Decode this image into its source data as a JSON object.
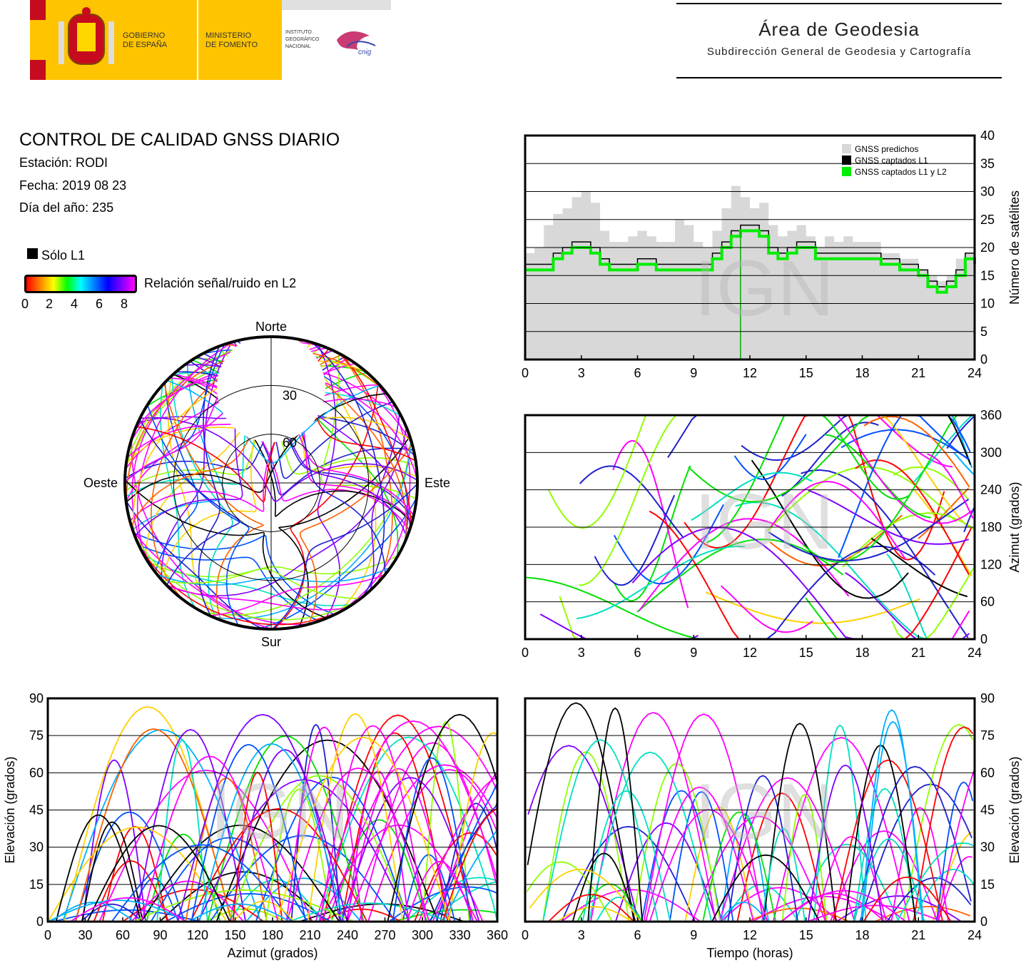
{
  "header": {
    "gov_line1": "GOBIERNO",
    "gov_line2": "DE ESPAÑA",
    "ministry_line1": "MINISTERIO",
    "ministry_line2": "DE FOMENTO",
    "ign_line1": "INSTITUTO",
    "ign_line2": "GEOGRÁFICO",
    "ign_line3": "NACIONAL",
    "cnig_logo": "cnig",
    "area_title": "Área de Geodesia",
    "area_subtitle": "Subdirección General de Geodesia y Cartografía"
  },
  "report": {
    "title": "CONTROL DE CALIDAD GNSS DIARIO",
    "station": "Estación: RODI",
    "date": "Fecha: 2019 08 23",
    "doy": "Día del año: 235"
  },
  "legend": {
    "l1_only": "Sólo L1",
    "snr_label": "Relación señal/ruido en L2",
    "snr_ticks": [
      "0",
      "2",
      "4",
      "6",
      "8"
    ]
  },
  "watermark": "IGN",
  "chart_data": [
    {
      "id": "satellites",
      "type": "area",
      "ylabel": "Número de satélites",
      "xlim": [
        0,
        24
      ],
      "ylim": [
        0,
        40
      ],
      "xticks": [
        "0",
        "3",
        "6",
        "9",
        "12",
        "15",
        "18",
        "21",
        "24"
      ],
      "yticks": [
        "0",
        "5",
        "10",
        "15",
        "20",
        "25",
        "30",
        "35",
        "40"
      ],
      "grid": true,
      "legend_position": "top-right",
      "series": [
        {
          "name": "GNSS predichos",
          "color": "#d8d8d8",
          "x": [
            0,
            0.5,
            1,
            1.5,
            2,
            2.5,
            3,
            3.5,
            4,
            4.5,
            5,
            5.5,
            6,
            6.5,
            7,
            7.5,
            8,
            8.5,
            9,
            9.5,
            10,
            10.5,
            11,
            11.5,
            12,
            12.5,
            13,
            13.5,
            14,
            14.5,
            15,
            15.5,
            16,
            16.5,
            17,
            17.5,
            18,
            18.5,
            19,
            19.5,
            20,
            20.5,
            21,
            21.5,
            22,
            22.5,
            23,
            23.5,
            24
          ],
          "values": [
            19,
            20,
            24,
            26,
            27,
            29,
            30,
            28,
            23,
            21,
            21,
            22,
            23,
            22,
            21,
            21,
            25,
            24,
            21,
            20,
            23,
            27,
            31,
            29,
            27,
            28,
            24,
            22,
            23,
            24,
            22,
            20,
            22,
            21,
            22,
            21,
            21,
            21,
            19,
            19,
            18,
            18,
            16,
            15,
            14,
            15,
            18,
            19,
            18
          ]
        },
        {
          "name": "GNSS captados L1",
          "color": "#000000",
          "x": [
            0,
            0.5,
            1,
            1.5,
            2,
            2.5,
            3,
            3.5,
            4,
            4.5,
            5,
            5.5,
            6,
            6.5,
            7,
            7.5,
            8,
            8.5,
            9,
            9.5,
            10,
            10.5,
            11,
            11.5,
            12,
            12.5,
            13,
            13.5,
            14,
            14.5,
            15,
            15.5,
            16,
            16.5,
            17,
            17.5,
            18,
            18.5,
            19,
            19.5,
            20,
            20.5,
            21,
            21.5,
            22,
            22.5,
            23,
            23.5,
            24
          ],
          "values": [
            17,
            17,
            17,
            19,
            20,
            21,
            21,
            20,
            18,
            17,
            17,
            17,
            18,
            18,
            17,
            17,
            17,
            17,
            17,
            17,
            19,
            21,
            23,
            24,
            24,
            23,
            20,
            19,
            20,
            21,
            21,
            19,
            19,
            19,
            19,
            19,
            19,
            19,
            18,
            18,
            17,
            17,
            16,
            14,
            13,
            14,
            16,
            19,
            18
          ]
        },
        {
          "name": "GNSS captados L1 y L2",
          "color": "#00ee00",
          "x": [
            0,
            0.5,
            1,
            1.5,
            2,
            2.5,
            3,
            3.5,
            4,
            4.5,
            5,
            5.5,
            6,
            6.5,
            7,
            7.5,
            8,
            8.5,
            9,
            9.5,
            10,
            10.5,
            11,
            11.5,
            12,
            12.5,
            13,
            13.5,
            14,
            14.5,
            15,
            15.5,
            16,
            16.5,
            17,
            17.5,
            18,
            18.5,
            19,
            19.5,
            20,
            20.5,
            21,
            21.5,
            22,
            22.5,
            23,
            23.5,
            24
          ],
          "values": [
            16,
            16,
            16,
            18,
            19,
            20,
            20,
            19,
            17,
            16,
            16,
            16,
            17,
            17,
            16,
            16,
            16,
            16,
            16,
            16,
            18,
            20,
            22,
            23,
            23,
            22,
            19,
            18,
            19,
            20,
            20,
            18,
            18,
            18,
            18,
            18,
            18,
            18,
            17,
            17,
            16,
            16,
            15,
            13,
            12,
            13,
            15,
            18,
            17
          ]
        }
      ]
    },
    {
      "id": "skyplot",
      "type": "scatter",
      "labels": {
        "north": "Norte",
        "south": "Sur",
        "west": "Oeste",
        "east": "Este"
      },
      "elevation_rings": [
        "30",
        "60"
      ]
    },
    {
      "id": "azimuth_time",
      "type": "scatter",
      "ylabel": "Azimut (grados)",
      "xlim": [
        0,
        24
      ],
      "ylim": [
        0,
        360
      ],
      "xticks": [
        "0",
        "3",
        "6",
        "9",
        "12",
        "15",
        "18",
        "21",
        "24"
      ],
      "yticks": [
        "0",
        "60",
        "120",
        "180",
        "240",
        "300",
        "360"
      ],
      "grid": true
    },
    {
      "id": "elevation_azimuth",
      "type": "scatter",
      "xlabel": "Azimut (grados)",
      "ylabel": "Elevación (grados)",
      "xlim": [
        0,
        360
      ],
      "ylim": [
        0,
        90
      ],
      "xticks": [
        "0",
        "30",
        "60",
        "90",
        "120",
        "150",
        "180",
        "210",
        "240",
        "270",
        "300",
        "330",
        "360"
      ],
      "yticks": [
        "0",
        "15",
        "30",
        "45",
        "60",
        "75",
        "90"
      ],
      "grid": true
    },
    {
      "id": "elevation_time",
      "type": "line",
      "xlabel": "Tiempo (horas)",
      "ylabel": "Elevación (grados)",
      "xlim": [
        0,
        24
      ],
      "ylim": [
        0,
        90
      ],
      "xticks": [
        "0",
        "3",
        "6",
        "9",
        "12",
        "15",
        "18",
        "21",
        "24"
      ],
      "yticks": [
        "0",
        "15",
        "30",
        "45",
        "60",
        "75",
        "90"
      ],
      "grid": true
    }
  ]
}
